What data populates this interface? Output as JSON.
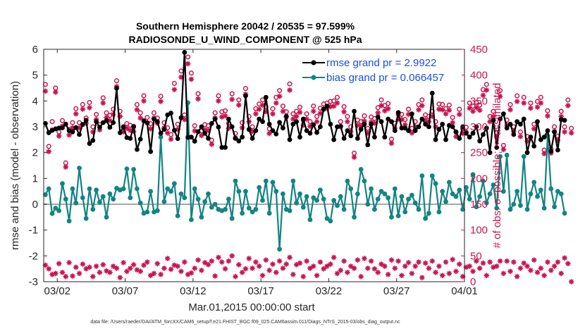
{
  "chart_data": {
    "type": "line",
    "title_line1": "Southern Hemisphere 20042 / 20535 = 97.599%",
    "title_line2": "RADIOSONDE_U_WIND_COMPONENT @ 525 hPa",
    "xlabel": "Mar.01,2015 00:00:00 start",
    "ylabel_left": "rmse and bias (model - observation)",
    "ylabel_right": "# of obs: o=possible; ×=assimilated",
    "ylim_left": [
      -3,
      6
    ],
    "ylim_right": [
      0,
      450
    ],
    "xlim_days": [
      0,
      31
    ],
    "x_ticks": [
      {
        "day": 1,
        "label": "03/02"
      },
      {
        "day": 6,
        "label": "03/07"
      },
      {
        "day": 11,
        "label": "03/12"
      },
      {
        "day": 16,
        "label": "03/17"
      },
      {
        "day": 21,
        "label": "03/22"
      },
      {
        "day": 26,
        "label": "03/27"
      },
      {
        "day": 31,
        "label": "04/01"
      }
    ],
    "y_ticks_left": [
      "-3",
      "-2",
      "-1",
      "0",
      "1",
      "2",
      "3",
      "4",
      "5",
      "6"
    ],
    "y_ticks_right": [
      "0",
      "50",
      "100",
      "150",
      "200",
      "250",
      "300",
      "350",
      "400",
      "450"
    ],
    "legend": {
      "rmse": "rmse grand pr = 2.9922",
      "bias": "bias grand pr = 0.066457"
    },
    "x_step_days": 0.25,
    "x_start_day": 0.125,
    "series": [
      {
        "name": "rmse",
        "color": "#000000",
        "values": [
          3.13,
          2.77,
          2.86,
          2.92,
          2.95,
          2.96,
          3.1,
          2.85,
          2.8,
          2.97,
          2.7,
          3.09,
          3.25,
          2.35,
          2.47,
          3.2,
          2.98,
          3.16,
          3.24,
          2.98,
          3.16,
          4.49,
          2.77,
          3.0,
          2.58,
          2.55,
          3.0,
          2.12,
          2.52,
          3.23,
          3.15,
          2.04,
          3.3,
          3.2,
          2.75,
          2.9,
          3.46,
          3.53,
          2.86,
          2.54,
          3.35,
          5.88,
          2.59,
          2.6,
          2.44,
          2.81,
          3.0,
          2.75,
          2.55,
          3.13,
          3.3,
          2.99,
          2.2,
          2.2,
          3.3,
          3.0,
          2.55,
          2.45,
          2.6,
          4.2,
          2.9,
          2.55,
          2.85,
          3.3,
          3.2,
          4.14,
          3.1,
          2.85,
          2.72,
          3.17,
          2.95,
          3.41,
          2.5,
          3.1,
          3.2,
          2.6,
          3.3,
          2.85,
          2.75,
          3.08,
          2.78,
          3.0,
          3.68,
          3.8,
          3.1,
          2.5,
          3.0,
          3.02,
          2.55,
          2.85,
          2.65,
          3.6,
          2.55,
          2.9,
          3.1,
          2.3,
          3.1,
          2.6,
          3.38,
          3.2,
          2.6,
          3.3,
          3.2,
          2.85,
          3.55,
          2.95,
          2.95,
          2.85,
          3.5,
          2.85,
          3.0,
          3.3,
          3.1,
          3.0,
          4.3,
          2.5,
          2.9,
          3.1,
          2.5,
          3.05,
          3.0,
          2.8,
          2.55,
          3.0,
          2.75,
          2.6,
          2.75,
          3.0,
          2.45,
          2.7,
          2.95,
          2.0,
          3.25,
          2.2,
          3.3,
          3.5,
          2.95,
          3.1,
          2.7,
          3.2,
          3.1,
          3.3,
          2.0,
          2.6,
          2.25,
          3.2,
          2.5,
          2.6,
          2.85,
          2.05,
          2.8,
          2.1,
          3.28,
          3.25
        ],
        "marker": "filled-circle"
      },
      {
        "name": "bias",
        "color": "#138483",
        "values": [
          0.37,
          0.6,
          -0.36,
          -0.15,
          -0.25,
          0.8,
          0.2,
          -0.65,
          0.6,
          0.05,
          1.4,
          0.25,
          -0.55,
          0.6,
          -0.2,
          0.55,
          0.08,
          0.3,
          -0.5,
          0.4,
          0.2,
          0.62,
          0.55,
          0.6,
          1.37,
          0.25,
          1.35,
          0.6,
          0.05,
          -0.35,
          -0.3,
          0.5,
          -0.3,
          -0.25,
          2.6,
          0.1,
          0.6,
          0.5,
          0.8,
          -0.45,
          0.4,
          0.25,
          3.93,
          -0.6,
          0.6,
          0.2,
          -0.5,
          0.1,
          0.4,
          -0.12,
          0.0,
          -0.2,
          -0.25,
          -0.2,
          0.2,
          -0.55,
          0.9,
          0.5,
          -0.35,
          0.5,
          -0.15,
          -0.3,
          -0.2,
          0.65,
          0.15,
          0.9,
          -0.35,
          0.85,
          0.5,
          -1.74,
          0.4,
          -0.2,
          -0.25,
          0.9,
          0.05,
          0.4,
          -0.12,
          0.3,
          -0.6,
          0.25,
          0.15,
          0.55,
          0.2,
          -0.55,
          -0.65,
          0.15,
          -0.05,
          0.3,
          -0.2,
          0.9,
          0.6,
          -0.5,
          0.4,
          1.35,
          0.9,
          0.0,
          0.6,
          -0.2,
          0.2,
          0.5,
          0.4,
          0.25,
          -0.5,
          0.6,
          -0.45,
          0.3,
          -0.3,
          0.2,
          0.35,
          0.05,
          -0.2,
          1.1,
          -0.55,
          -0.35,
          1.1,
          0.8,
          -0.3,
          0.5,
          0.1,
          0.85,
          0.4,
          0.3,
          0.55,
          -0.2,
          0.65,
          0.2,
          1.15,
          -0.1,
          0.3,
          0.9,
          0.05,
          0.4,
          0.75,
          -0.15,
          1.85,
          0.5,
          1.9,
          -0.2,
          0.0,
          0.5,
          -0.05,
          1.85,
          -0.2,
          0.4,
          0.85,
          0.3,
          0.55,
          -0.15,
          2.65,
          0.6,
          -0.1,
          0.5,
          0.4,
          -0.35
        ],
        "marker": "filled-circle"
      },
      {
        "name": "possible obs",
        "color": "#c8154f",
        "values": [
          382,
          262,
          310,
          375,
          290,
          312,
          230,
          295,
          308,
          335,
          308,
          343,
          317,
          347,
          300,
          324,
          304,
          356,
          327,
          322,
          334,
          389,
          330,
          300,
          306,
          303,
          301,
          343,
          327,
          360,
          318,
          306,
          327,
          317,
          359,
          308,
          298,
          285,
          384,
          305,
          408,
          323,
          435,
          404,
          302,
          364,
          292,
          304,
          302,
          274,
          327,
          360,
          329,
          331,
          307,
          364,
          287,
          352,
          308,
          374,
          320,
          300,
          335,
          344,
          352,
          339,
          296,
          335,
          357,
          370,
          340,
          329,
          383,
          325,
          330,
          338,
          313,
          325,
          310,
          340,
          320,
          336,
          344,
          346,
          349,
          350,
          357,
          310,
          339,
          320,
          300,
          249,
          313,
          310,
          321,
          297,
          319,
          316,
          337,
          352,
          341,
          345,
          276,
          307,
          324,
          324,
          314,
          334,
          297,
          310,
          343,
          352,
          323,
          320,
          330,
          310,
          344,
          343,
          335,
          342,
          318,
          290,
          334,
          296,
          299,
          346,
          340,
          347,
          342,
          372,
          382,
          320,
          330,
          289,
          370,
          264,
          313,
          343,
          300,
          360,
          290,
          357,
          281,
          346,
          305,
          349,
          357,
          255,
          331,
          257,
          300,
          282,
          330,
          300,
          352,
          297
        ],
        "marker": "open-circle"
      },
      {
        "name": "assimilated obs",
        "color": "#c8154f",
        "values": [
          369,
          252,
          294,
          367,
          282,
          301,
          222,
          284,
          298,
          325,
          298,
          334,
          307,
          337,
          290,
          314,
          294,
          346,
          318,
          312,
          324,
          378,
          320,
          290,
          297,
          293,
          291,
          333,
          317,
          350,
          308,
          296,
          317,
          307,
          349,
          298,
          288,
          276,
          372,
          295,
          396,
          314,
          422,
          392,
          292,
          354,
          283,
          294,
          293,
          266,
          317,
          350,
          319,
          321,
          297,
          353,
          278,
          342,
          298,
          363,
          310,
          291,
          325,
          334,
          342,
          329,
          287,
          325,
          346,
          359,
          330,
          319,
          371,
          315,
          320,
          328,
          303,
          315,
          301,
          330,
          310,
          326,
          334,
          336,
          339,
          340,
          346,
          300,
          329,
          310,
          291,
          241,
          303,
          301,
          311,
          288,
          309,
          307,
          327,
          341,
          331,
          335,
          268,
          297,
          314,
          314,
          304,
          324,
          288,
          300,
          333,
          341,
          313,
          310,
          320,
          300,
          334,
          333,
          325,
          332,
          308,
          281,
          324,
          287,
          290,
          336,
          330,
          337,
          332,
          361,
          371,
          310,
          320,
          280,
          359,
          256,
          303,
          333,
          291,
          349,
          281,
          346,
          272,
          336,
          296,
          338,
          346,
          248,
          321,
          249,
          291,
          274,
          320,
          290,
          341,
          288
        ],
        "marker": "asterisk"
      },
      {
        "name": "low-count obs",
        "color": "#c8154f",
        "values": [
          32,
          25,
          14,
          16,
          35,
          18,
          10,
          37,
          11,
          28,
          16,
          34,
          25,
          28,
          10,
          30,
          18,
          33,
          21,
          18,
          30,
          26,
          8,
          37,
          20,
          26,
          33,
          23,
          20,
          32,
          38,
          12,
          16,
          35,
          14,
          26,
          45,
          24,
          32,
          30,
          20,
          38,
          14,
          17,
          26,
          42,
          22,
          37,
          33,
          40,
          11,
          47,
          38,
          25,
          40,
          50,
          10,
          33,
          18,
          25,
          45,
          26,
          38,
          30,
          12,
          42,
          22,
          34,
          18,
          40,
          26,
          34,
          47,
          14,
          33,
          36,
          10,
          40,
          26,
          30,
          12,
          38,
          25,
          30,
          34,
          47,
          16,
          22,
          40,
          18,
          30,
          26,
          42,
          10,
          45,
          26,
          40,
          25,
          18,
          34,
          30,
          14,
          42,
          26,
          40,
          12,
          30,
          37,
          16,
          30,
          38,
          8,
          36,
          26,
          40,
          18,
          30,
          12,
          38,
          16,
          43,
          20,
          34,
          10,
          28,
          30,
          20,
          40,
          26,
          36,
          12,
          38,
          28,
          30,
          40,
          16,
          40,
          20,
          38,
          10,
          26,
          36,
          30,
          22,
          42,
          18,
          26,
          12,
          38,
          22,
          30,
          38,
          16,
          46,
          35,
          0
        ],
        "marker": "asterisk"
      }
    ]
  },
  "footer": "data file: /Users/raeder/DAI/ATM_forcXX/CAM6_setup/f.e21.FHIST_BGC.f09_025.CAM6assim.011/Diags_NTrS_2015-03/obs_diag_output.nc"
}
